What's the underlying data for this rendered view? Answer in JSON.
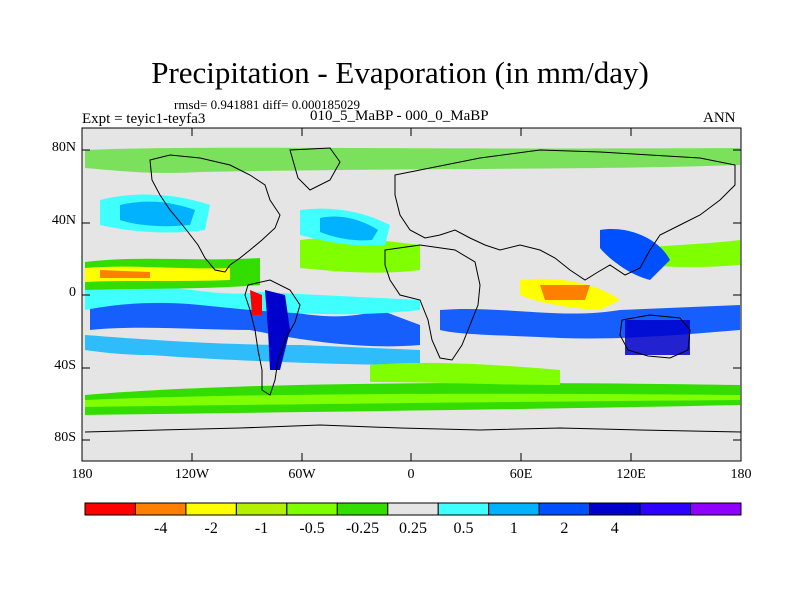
{
  "title": "Precipitation - Evaporation (in mm/day)",
  "stats": "rmsd= 0.941881 diff= 0.000185029",
  "experiment": "Expt = teyic1-teyfa3",
  "period": "010_5_MaBP - 000_0_MaBP",
  "season": "ANN",
  "lat_labels": [
    "80N",
    "40N",
    "0",
    "40S",
    "80S"
  ],
  "lon_labels": [
    "180",
    "120W",
    "60W",
    "0",
    "60E",
    "120E",
    "180"
  ],
  "colorbar": {
    "colors": [
      "#ff0000",
      "#ff7f00",
      "#ffff00",
      "#b5f000",
      "#7fff00",
      "#33dd00",
      "#e5e5e5",
      "#40ffff",
      "#00b2ff",
      "#0050ff",
      "#0000cd",
      "#2e00ff",
      "#9000ff"
    ],
    "labels": [
      "-4",
      "-2",
      "-1",
      "-0.5",
      "-0.25",
      "0.25",
      "0.5",
      "1",
      "2",
      "4"
    ]
  },
  "palette": {
    "background": "#e5e5e5",
    "gridline": "#000000"
  }
}
